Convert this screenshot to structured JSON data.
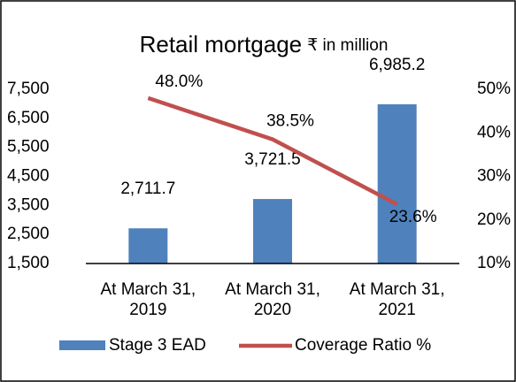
{
  "chart_data": {
    "type": "bar-line",
    "title": "Retail mortgage",
    "subtitle": "₹ in million",
    "categories": [
      "At March 31, 2019",
      "At March 31, 2020",
      "At March 31, 2021"
    ],
    "series": [
      {
        "name": "Stage 3 EAD",
        "type": "bar",
        "color": "#4f81bd",
        "axis": "y",
        "values": [
          2711.7,
          3721.5,
          6985.2
        ],
        "value_labels": [
          "2,711.7",
          "3,721.5",
          "6,985.2"
        ]
      },
      {
        "name": "Coverage Ratio %",
        "type": "line",
        "color": "#c0504d",
        "axis": "y2",
        "values": [
          48.0,
          38.5,
          23.6
        ],
        "value_labels": [
          "48.0%",
          "38.5%",
          "23.6%"
        ]
      }
    ],
    "ylim": [
      1500,
      7500
    ],
    "yticks": [
      {
        "value": 1500,
        "label": "1,500"
      },
      {
        "value": 2500,
        "label": "2,500"
      },
      {
        "value": 3500,
        "label": "3,500"
      },
      {
        "value": 4500,
        "label": "4,500"
      },
      {
        "value": 5500,
        "label": "5,500"
      },
      {
        "value": 6500,
        "label": "6,500"
      },
      {
        "value": 7500,
        "label": "7,500"
      }
    ],
    "y2lim": [
      10,
      50
    ],
    "y2ticks": [
      {
        "value": 10,
        "label": "10%"
      },
      {
        "value": 20,
        "label": "20%"
      },
      {
        "value": 30,
        "label": "30%"
      },
      {
        "value": 40,
        "label": "40%"
      },
      {
        "value": 50,
        "label": "50%"
      }
    ],
    "legend": "bottom"
  }
}
